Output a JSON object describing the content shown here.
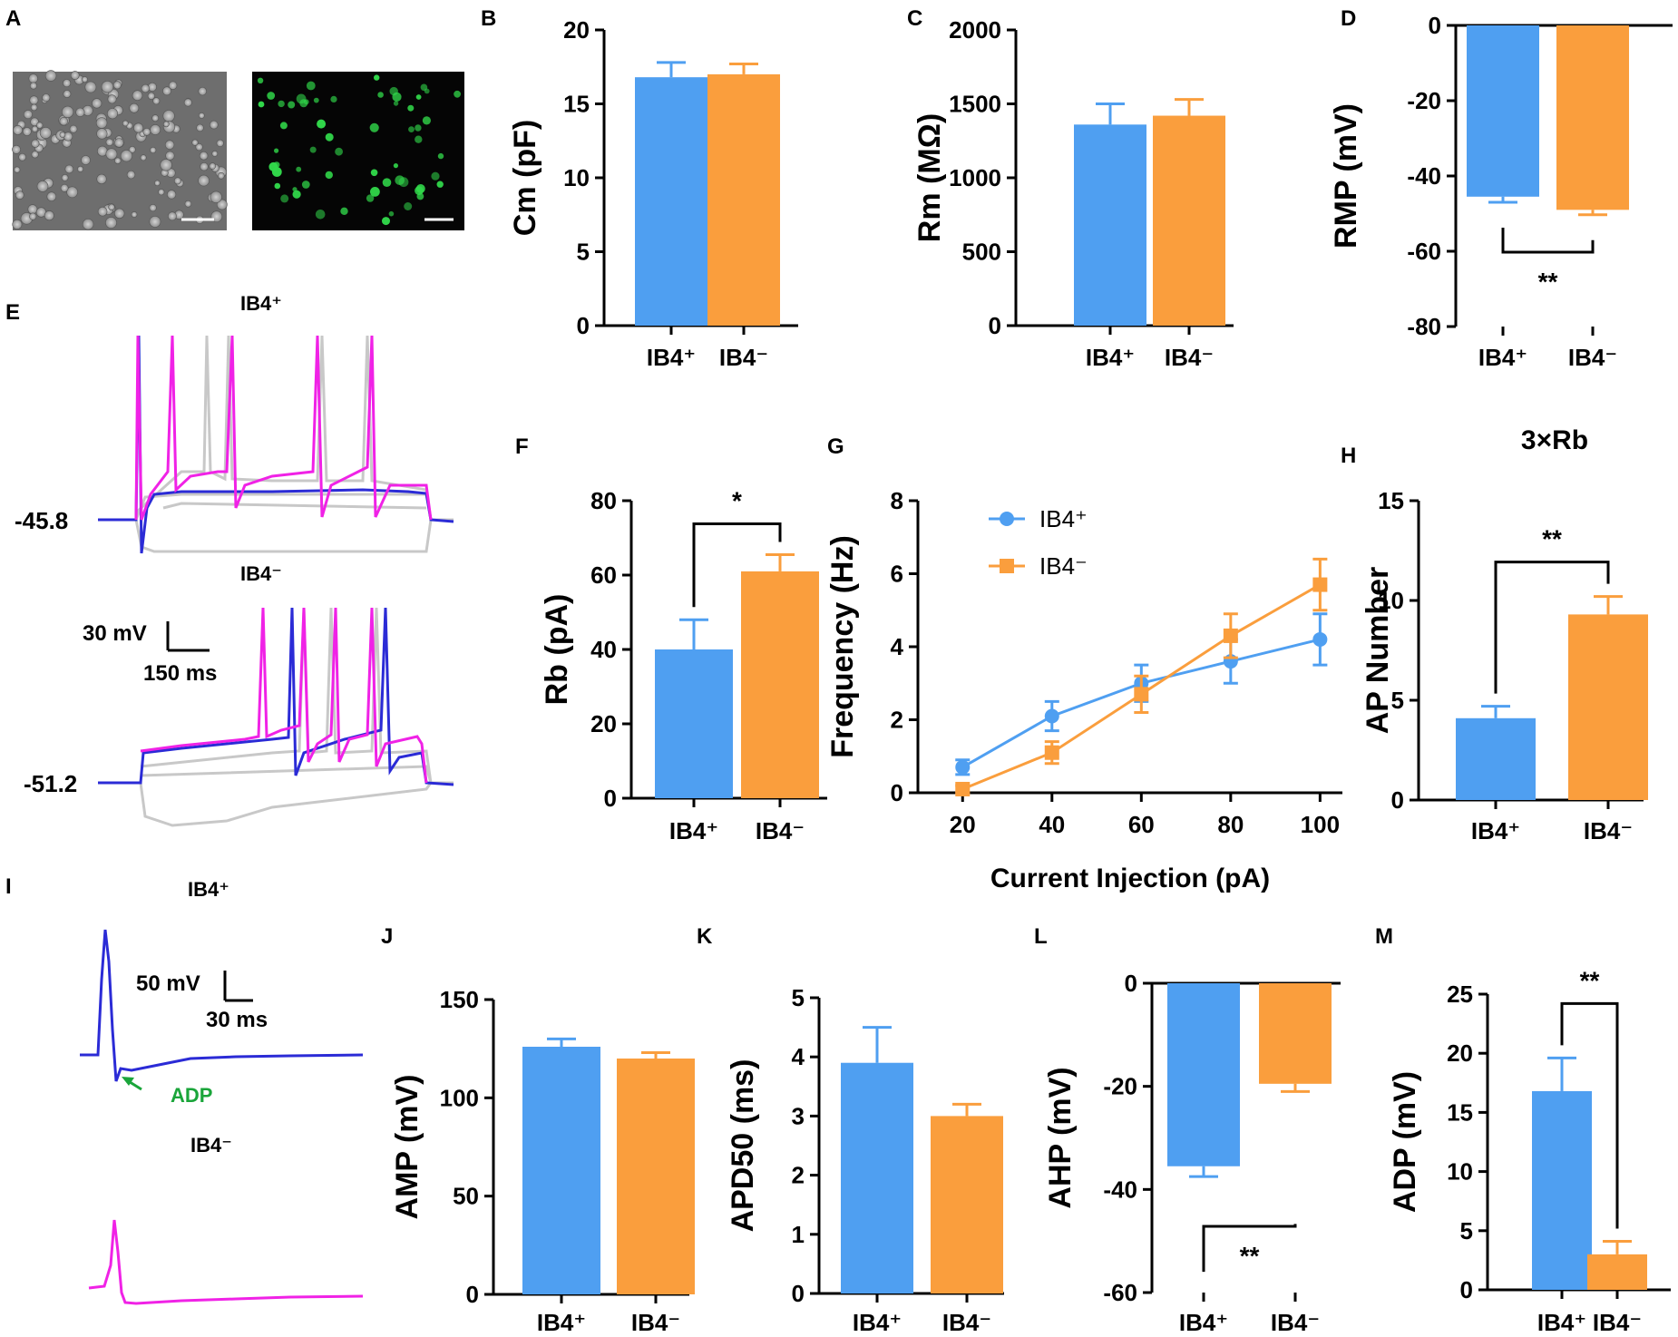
{
  "figure": {
    "panels": {
      "A": "A",
      "B": "B",
      "C": "C",
      "D": "D",
      "E": "E",
      "F": "F",
      "G": "G",
      "H": "H",
      "I": "I",
      "J": "J",
      "K": "K",
      "L": "L",
      "M": "M"
    },
    "trace_labels": {
      "ib4_pos": "IB4⁺",
      "ib4_neg": "IB4⁻"
    },
    "e_scale": {
      "voltage": "30 mV",
      "time": "150 ms"
    },
    "e_rmp": {
      "pos": "-45.8",
      "neg": "-51.2"
    },
    "i_scale": {
      "voltage": "50 mV",
      "time": "30 ms"
    },
    "i_adp_label": "ADP",
    "h_title": "3×Rb"
  },
  "colors": {
    "ib4_pos": "#4f9ff1",
    "ib4_neg": "#fa9e3d",
    "trace_blue": "#2b2bd6",
    "trace_pink": "#f022e6",
    "trace_gray": "#c8c8c8",
    "adp_green": "#1aa53a"
  },
  "chart_data": [
    {
      "id": "B",
      "type": "bar",
      "categories": [
        "IB4⁺",
        "IB4⁻"
      ],
      "values": [
        16.8,
        17.0
      ],
      "errors": [
        1.0,
        0.7
      ],
      "ylabel": "Cm (pF)",
      "ylim": [
        0,
        20
      ],
      "yticks": [
        0,
        5,
        10,
        15,
        20
      ]
    },
    {
      "id": "C",
      "type": "bar",
      "categories": [
        "IB4⁺",
        "IB4⁻"
      ],
      "values": [
        1360,
        1420
      ],
      "errors": [
        140,
        110
      ],
      "ylabel": "Rm (MΩ)",
      "ylim": [
        0,
        2000
      ],
      "yticks": [
        0,
        500,
        1000,
        1500,
        2000
      ]
    },
    {
      "id": "D",
      "type": "bar",
      "categories": [
        "IB4⁺",
        "IB4⁻"
      ],
      "values": [
        -45.5,
        -49
      ],
      "errors": [
        1.5,
        1.3
      ],
      "ylabel": "RMP (mV)",
      "ylim": [
        -80,
        0
      ],
      "yticks": [
        0,
        -20,
        -40,
        -60,
        -80
      ],
      "significance": "**"
    },
    {
      "id": "F",
      "type": "bar",
      "categories": [
        "IB4⁺",
        "IB4⁻"
      ],
      "values": [
        40,
        61
      ],
      "errors": [
        8,
        4.5
      ],
      "ylabel": "Rb (pA)",
      "ylim": [
        0,
        80
      ],
      "yticks": [
        0,
        20,
        40,
        60,
        80
      ],
      "significance": "*"
    },
    {
      "id": "G",
      "type": "line",
      "x": [
        20,
        40,
        60,
        80,
        100
      ],
      "series": [
        {
          "name": "IB4⁺",
          "values": [
            0.7,
            2.1,
            3.0,
            3.6,
            4.2
          ],
          "errors": [
            0.2,
            0.4,
            0.5,
            0.6,
            0.7
          ]
        },
        {
          "name": "IB4⁻",
          "values": [
            0.1,
            1.1,
            2.7,
            4.3,
            5.7
          ],
          "errors": [
            0.1,
            0.3,
            0.5,
            0.6,
            0.7
          ]
        }
      ],
      "xlabel": "Current Injection (pA)",
      "ylabel": "Frequency (Hz)",
      "xlim": [
        10,
        105
      ],
      "ylim": [
        0,
        8
      ],
      "xticks": [
        20,
        40,
        60,
        80,
        100
      ],
      "yticks": [
        0,
        2,
        4,
        6,
        8
      ]
    },
    {
      "id": "H",
      "type": "bar",
      "categories": [
        "IB4⁺",
        "IB4⁻"
      ],
      "values": [
        4.1,
        9.3
      ],
      "errors": [
        0.6,
        0.9
      ],
      "ylabel": "AP Number",
      "title": "3×Rb",
      "ylim": [
        0,
        15
      ],
      "yticks": [
        0,
        5,
        10,
        15
      ],
      "significance": "**"
    },
    {
      "id": "J",
      "type": "bar",
      "categories": [
        "IB4⁺",
        "IB4⁻"
      ],
      "values": [
        126,
        120
      ],
      "errors": [
        4,
        3
      ],
      "ylabel": "AMP (mV)",
      "ylim": [
        0,
        150
      ],
      "yticks": [
        0,
        50,
        100,
        150
      ]
    },
    {
      "id": "K",
      "type": "bar",
      "categories": [
        "IB4⁺",
        "IB4⁻"
      ],
      "values": [
        3.9,
        3.0
      ],
      "errors": [
        0.6,
        0.2
      ],
      "ylabel": "APD50 (ms)",
      "ylim": [
        0,
        5
      ],
      "yticks": [
        0,
        1,
        2,
        3,
        4,
        5
      ]
    },
    {
      "id": "L",
      "type": "bar",
      "categories": [
        "IB4⁺",
        "IB4⁻"
      ],
      "values": [
        -35.5,
        -19.5
      ],
      "errors": [
        2,
        1.5
      ],
      "ylabel": "AHP (mV)",
      "ylim": [
        -60,
        0
      ],
      "yticks": [
        0,
        -20,
        -40,
        -60
      ],
      "significance": "**"
    },
    {
      "id": "M",
      "type": "bar",
      "categories": [
        "IB4⁺",
        "IB4⁻"
      ],
      "values": [
        16.8,
        3.0
      ],
      "errors": [
        2.8,
        1.1
      ],
      "ylabel": "ADP (mV)",
      "ylim": [
        0,
        25
      ],
      "yticks": [
        0,
        5,
        10,
        15,
        20,
        25
      ],
      "significance": "**"
    }
  ]
}
